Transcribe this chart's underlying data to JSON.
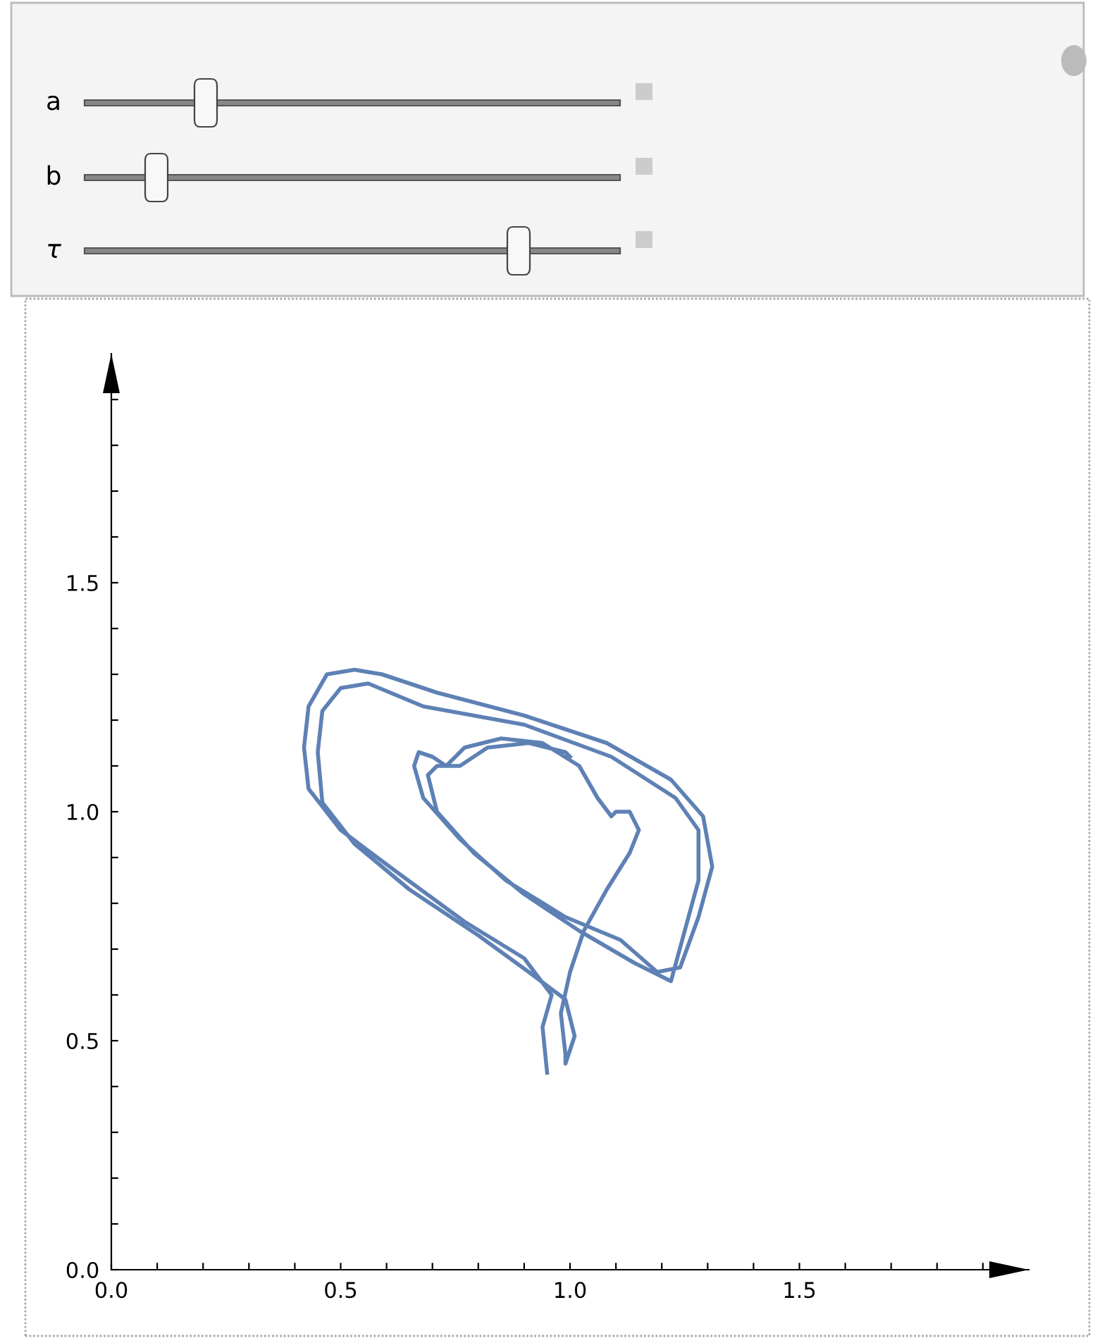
{
  "chart_data": {
    "type": "line",
    "annotations": [
      "a",
      "b",
      "τ"
    ],
    "xlim": [
      0,
      2
    ],
    "ylim": [
      0,
      2
    ],
    "xticks": [
      {
        "value": 0,
        "label": "0.0"
      },
      {
        "value": 0.1,
        "label": null
      },
      {
        "value": 0.2,
        "label": null
      },
      {
        "value": 0.3,
        "label": null
      },
      {
        "value": 0.4,
        "label": null
      },
      {
        "value": 0.5,
        "label": "0.5"
      },
      {
        "value": 0.6,
        "label": null
      },
      {
        "value": 0.7,
        "label": null
      },
      {
        "value": 0.8,
        "label": null
      },
      {
        "value": 0.9,
        "label": null
      },
      {
        "value": 1.0,
        "label": "1.0"
      },
      {
        "value": 1.1,
        "label": null
      },
      {
        "value": 1.2,
        "label": null
      },
      {
        "value": 1.3,
        "label": null
      },
      {
        "value": 1.4,
        "label": null
      },
      {
        "value": 1.5,
        "label": "1.5"
      },
      {
        "value": 1.6,
        "label": null
      },
      {
        "value": 1.7,
        "label": null
      },
      {
        "value": 1.8,
        "label": null
      },
      {
        "value": 1.9,
        "label": null
      }
    ],
    "yticks": [
      {
        "value": 0,
        "label": "0.0"
      },
      {
        "value": 0.1,
        "label": null
      },
      {
        "value": 0.2,
        "label": null
      },
      {
        "value": 0.3,
        "label": null
      },
      {
        "value": 0.4,
        "label": null
      },
      {
        "value": 0.5,
        "label": "0.5"
      },
      {
        "value": 0.6,
        "label": null
      },
      {
        "value": 0.7,
        "label": null
      },
      {
        "value": 0.8,
        "label": null
      },
      {
        "value": 0.9,
        "label": null
      },
      {
        "value": 1.0,
        "label": "1.0"
      },
      {
        "value": 1.1,
        "label": null
      },
      {
        "value": 1.2,
        "label": null
      },
      {
        "value": 1.3,
        "label": null
      },
      {
        "value": 1.4,
        "label": null
      },
      {
        "value": 1.5,
        "label": "1.5"
      },
      {
        "value": 1.6,
        "label": null
      },
      {
        "value": 1.7,
        "label": null
      },
      {
        "value": 1.8,
        "label": null
      },
      {
        "value": 1.9,
        "label": null
      }
    ],
    "grid": false,
    "legend": false,
    "marker": "none",
    "line_style": "solid",
    "series": [
      {
        "color": "#5e81b5",
        "x": [
          0.95,
          0.94,
          0.96,
          0.9,
          0.77,
          0.62,
          0.5,
          0.43,
          0.42,
          0.43,
          0.47,
          0.53,
          0.59,
          0.71,
          0.9,
          1.08,
          1.22,
          1.29,
          1.31,
          1.28,
          1.24,
          1.19,
          1.11,
          0.99,
          0.86,
          0.76,
          0.68,
          0.66,
          0.67,
          0.7,
          0.73,
          0.77,
          0.85,
          0.94,
          1.02,
          1.06,
          1.09,
          1.1,
          1.13,
          1.15,
          1.13,
          1.08,
          1.03,
          1.0,
          0.98,
          0.99,
          0.99,
          1.01,
          0.99,
          0.91,
          0.8,
          0.65,
          0.53,
          0.46,
          0.45,
          0.46,
          0.5,
          0.56,
          0.68,
          0.9,
          1.09,
          1.23,
          1.28,
          1.28,
          1.25,
          1.22,
          1.14,
          1.02,
          0.9,
          0.79,
          0.71,
          0.69,
          0.71,
          0.76,
          0.82,
          0.91,
          0.99,
          1.0
        ],
        "values": [
          0.43,
          0.53,
          0.6,
          0.68,
          0.76,
          0.87,
          0.96,
          1.05,
          1.14,
          1.23,
          1.3,
          1.31,
          1.3,
          1.26,
          1.21,
          1.15,
          1.07,
          0.99,
          0.88,
          0.77,
          0.66,
          0.65,
          0.72,
          0.77,
          0.85,
          0.94,
          1.03,
          1.1,
          1.13,
          1.12,
          1.1,
          1.14,
          1.16,
          1.15,
          1.1,
          1.03,
          0.99,
          1.0,
          1.0,
          0.96,
          0.91,
          0.83,
          0.74,
          0.65,
          0.56,
          0.47,
          0.45,
          0.51,
          0.59,
          0.65,
          0.73,
          0.83,
          0.93,
          1.02,
          1.13,
          1.22,
          1.27,
          1.28,
          1.23,
          1.19,
          1.12,
          1.03,
          0.96,
          0.85,
          0.74,
          0.63,
          0.67,
          0.74,
          0.82,
          0.91,
          1.0,
          1.08,
          1.1,
          1.1,
          1.14,
          1.15,
          1.13,
          1.12
        ]
      }
    ]
  }
}
